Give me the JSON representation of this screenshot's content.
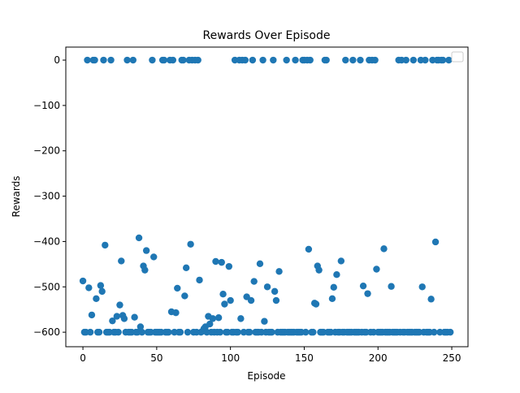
{
  "chart_data": {
    "type": "scatter",
    "title": "Rewards Over Episode",
    "x_label": "Episode",
    "y_label": "Rewards",
    "x": [
      0,
      1,
      2,
      3,
      4,
      5,
      6,
      7,
      8,
      9,
      10,
      11,
      12,
      13,
      14,
      15,
      16,
      17,
      18,
      19,
      20,
      21,
      22,
      23,
      24,
      25,
      26,
      27,
      28,
      29,
      30,
      31,
      32,
      33,
      34,
      35,
      36,
      37,
      38,
      39,
      40,
      41,
      42,
      43,
      44,
      45,
      46,
      47,
      48,
      49,
      50,
      51,
      52,
      53,
      54,
      55,
      56,
      57,
      58,
      59,
      60,
      61,
      62,
      63,
      64,
      65,
      66,
      67,
      68,
      69,
      70,
      71,
      72,
      73,
      74,
      75,
      76,
      77,
      78,
      79,
      80,
      81,
      82,
      83,
      84,
      85,
      86,
      87,
      88,
      89,
      90,
      91,
      92,
      93,
      94,
      95,
      96,
      97,
      98,
      99,
      100,
      101,
      102,
      103,
      104,
      105,
      106,
      107,
      108,
      109,
      110,
      111,
      112,
      113,
      114,
      115,
      116,
      117,
      118,
      119,
      120,
      121,
      122,
      123,
      124,
      125,
      126,
      127,
      128,
      129,
      130,
      131,
      132,
      133,
      134,
      135,
      136,
      137,
      138,
      139,
      140,
      141,
      142,
      143,
      144,
      145,
      146,
      147,
      148,
      149,
      150,
      151,
      152,
      153,
      154,
      155,
      156,
      157,
      158,
      159,
      160,
      161,
      162,
      163,
      164,
      165,
      166,
      167,
      168,
      169,
      170,
      171,
      172,
      173,
      174,
      175,
      176,
      177,
      178,
      179,
      180,
      181,
      182,
      183,
      184,
      185,
      186,
      187,
      188,
      189,
      190,
      191,
      192,
      193,
      194,
      195,
      196,
      197,
      198,
      199,
      200,
      201,
      202,
      203,
      204,
      205,
      206,
      207,
      208,
      209,
      210,
      211,
      212,
      213,
      214,
      215,
      216,
      217,
      218,
      219,
      220,
      221,
      222,
      223,
      224,
      225,
      226,
      227,
      228,
      229,
      230,
      231,
      232,
      233,
      234,
      235,
      236,
      237,
      238,
      239,
      240,
      241,
      242,
      243,
      244,
      245,
      246,
      247,
      248,
      249
    ],
    "values": [
      -487,
      -600,
      -600,
      0,
      -502,
      -600,
      -562,
      0,
      0,
      -526,
      -600,
      -600,
      -497,
      -510,
      0,
      -408,
      -600,
      -600,
      -600,
      0,
      -575,
      -600,
      -600,
      -565,
      -600,
      -540,
      -443,
      -563,
      -570,
      -600,
      0,
      -600,
      -600,
      -600,
      0,
      -567,
      -600,
      -600,
      -392,
      -588,
      -600,
      -454,
      -463,
      -420,
      -600,
      -600,
      -600,
      0,
      -434,
      -600,
      -600,
      -600,
      -600,
      -600,
      0,
      0,
      -600,
      -600,
      -600,
      0,
      -555,
      0,
      -600,
      -557,
      -503,
      -600,
      -600,
      0,
      0,
      -520,
      -458,
      -600,
      0,
      -406,
      0,
      -600,
      0,
      -600,
      0,
      -485,
      -600,
      -598,
      -592,
      -588,
      -600,
      -565,
      -582,
      -600,
      -570,
      -600,
      -444,
      -600,
      -568,
      -600,
      -446,
      -516,
      -538,
      -600,
      -600,
      -455,
      -530,
      -600,
      -600,
      0,
      -600,
      -600,
      0,
      -570,
      0,
      -600,
      0,
      -522,
      -600,
      -600,
      -530,
      0,
      -488,
      -600,
      -600,
      -600,
      -449,
      -600,
      0,
      -576,
      -600,
      -500,
      -600,
      -600,
      -600,
      0,
      -510,
      -530,
      -600,
      -466,
      -600,
      -600,
      -600,
      -600,
      0,
      -600,
      -600,
      -600,
      -600,
      -600,
      0,
      -600,
      -600,
      -600,
      -600,
      0,
      0,
      -600,
      0,
      -417,
      0,
      -600,
      -600,
      -536,
      -538,
      -454,
      -463,
      -600,
      -600,
      -600,
      0,
      0,
      -600,
      -600,
      -600,
      -526,
      -501,
      -600,
      -473,
      -600,
      -600,
      -443,
      -600,
      -600,
      0,
      -600,
      -600,
      -600,
      -600,
      0,
      -600,
      -600,
      -600,
      -600,
      0,
      -600,
      -498,
      -600,
      -600,
      -515,
      0,
      -600,
      0,
      -600,
      0,
      -461,
      -600,
      -600,
      -600,
      -600,
      -416,
      -600,
      -600,
      -600,
      -600,
      -499,
      -600,
      -600,
      -600,
      -600,
      0,
      -600,
      0,
      -600,
      -600,
      0,
      -600,
      -600,
      -600,
      -600,
      0,
      -600,
      -600,
      -600,
      -600,
      0,
      -500,
      -600,
      0,
      -600,
      -600,
      -600,
      -527,
      0,
      -600,
      -401,
      0,
      0,
      -600,
      0,
      0,
      -600,
      -600,
      -600,
      0,
      -600
    ],
    "color": "#1f77b4",
    "xlim": [
      -11.6,
      261
    ],
    "ylim": [
      -632,
      28.7
    ],
    "xticks": [
      0,
      50,
      100,
      150,
      200,
      250
    ],
    "yticks": [
      {
        "value": -600,
        "label": "−600"
      },
      {
        "value": -500,
        "label": "−500"
      },
      {
        "value": -400,
        "label": "−400"
      },
      {
        "value": -300,
        "label": "−300"
      },
      {
        "value": -200,
        "label": "−200"
      },
      {
        "value": -100,
        "label": "−100"
      },
      0
    ]
  }
}
